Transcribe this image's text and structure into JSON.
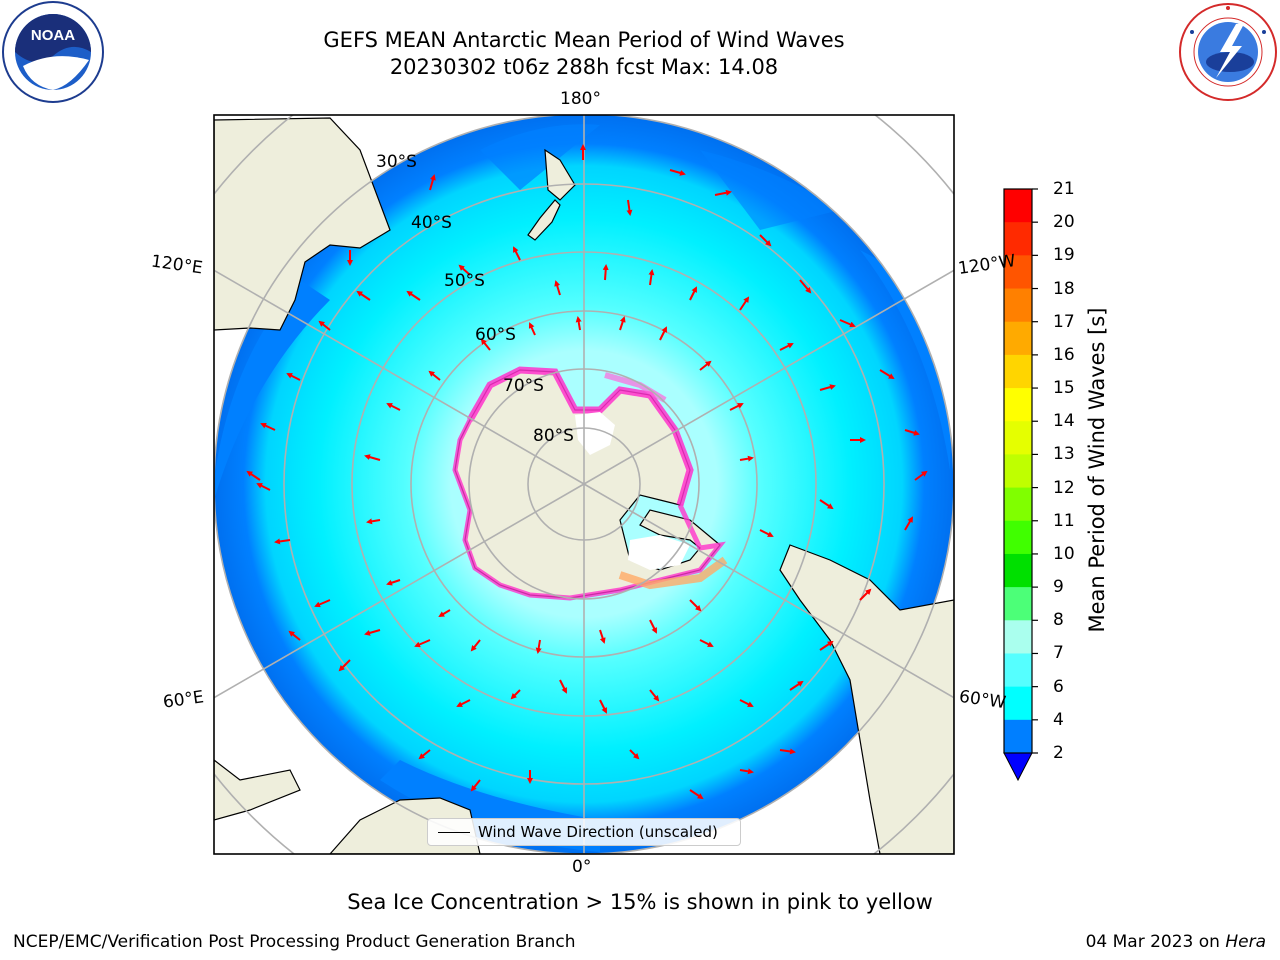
{
  "title_line1": "GEFS MEAN Antarctic Mean Period of Wind Waves",
  "title_line2": "20230302 t06z 288h fcst   Max: 14.08",
  "lat_labels": [
    "30°S",
    "40°S",
    "50°S",
    "60°S",
    "70°S",
    "80°S"
  ],
  "lon_labels": {
    "top": "180°",
    "bottom": "0°",
    "upper_left": "120°E",
    "upper_right": "120°W",
    "lower_left": "60°E",
    "lower_right": "60°W"
  },
  "colorbar": {
    "label": "Mean Period of Wind Waves [s]",
    "ticks": [
      "21",
      "20",
      "19",
      "18",
      "17",
      "16",
      "15",
      "14",
      "13",
      "12",
      "11",
      "10",
      "9",
      "8",
      "7",
      "6",
      "4",
      "2"
    ],
    "colors_top_to_bottom": [
      "#ff0000",
      "#ff2a00",
      "#ff5500",
      "#ff8000",
      "#ffaa00",
      "#ffd500",
      "#ffff00",
      "#e5ff00",
      "#bfff00",
      "#80ff00",
      "#40ff00",
      "#00e000",
      "#4cff78",
      "#aaffee",
      "#55ffff",
      "#00ffff",
      "#007fff"
    ],
    "extend_color": "#0000ff"
  },
  "legend_label": "Wind Wave Direction (unscaled)",
  "caption": "Sea Ice Concentration > 15% is shown in pink to yellow",
  "footer_left": "NCEP/EMC/Verification Post Processing Product Generation Branch",
  "footer_date": "04 Mar 2023 on ",
  "footer_host": "Hera",
  "colors": {
    "land": "#eeeedc",
    "ocean_low": "#0080ff",
    "ocean_mid": "#00e5ff",
    "ocean_high": "#aaffff",
    "ice": "#ff33cc",
    "arrow": "#ff0000",
    "grid": "#b0b0b0"
  },
  "logos": [
    "noaa-logo",
    "nws-logo"
  ]
}
